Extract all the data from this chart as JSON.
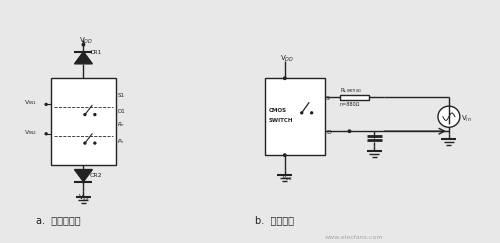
{
  "bg_color": "#f0f0f0",
  "fig_bg": "#e8e8e8",
  "label_a": "a.  二极管保护",
  "label_b": "b.  限流保护",
  "watermark": "www.elecfans.com",
  "title_color": "#333333",
  "line_color": "#222222",
  "box_color": "#222222"
}
